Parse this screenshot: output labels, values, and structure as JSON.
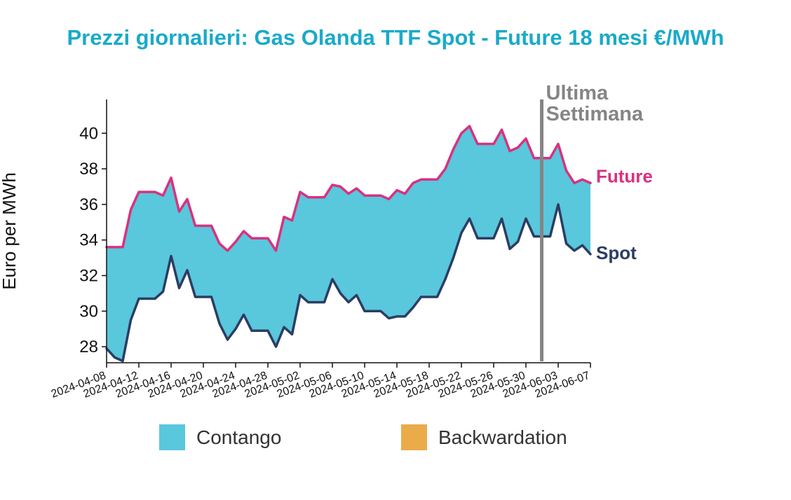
{
  "chart_data": {
    "type": "area",
    "title": "Prezzi giornalieri: Gas Olanda TTF Spot - Future 18 mesi €/MWh",
    "ylabel": "Euro per MWh",
    "xlabel": "",
    "ylim": [
      27.1,
      41.9
    ],
    "xlim": [
      "2024-04-08",
      "2024-06-07"
    ],
    "yticks": [
      28,
      30,
      32,
      34,
      36,
      38,
      40
    ],
    "xticks": [
      "2024-04-08",
      "2024-04-12",
      "2024-04-16",
      "2024-04-20",
      "2024-04-24",
      "2024-04-28",
      "2024-05-02",
      "2024-05-06",
      "2024-05-10",
      "2024-05-14",
      "2024-05-18",
      "2024-05-22",
      "2024-05-26",
      "2024-05-30",
      "2024-06-03",
      "2024-06-07"
    ],
    "series": [
      {
        "name": "Future",
        "color": "#d9317f",
        "x": [
          "2024-04-08",
          "2024-04-09",
          "2024-04-10",
          "2024-04-11",
          "2024-04-12",
          "2024-04-13",
          "2024-04-14",
          "2024-04-15",
          "2024-04-16",
          "2024-04-17",
          "2024-04-18",
          "2024-04-19",
          "2024-04-20",
          "2024-04-21",
          "2024-04-22",
          "2024-04-23",
          "2024-04-24",
          "2024-04-25",
          "2024-04-26",
          "2024-04-27",
          "2024-04-28",
          "2024-04-29",
          "2024-04-30",
          "2024-05-01",
          "2024-05-02",
          "2024-05-03",
          "2024-05-04",
          "2024-05-05",
          "2024-05-06",
          "2024-05-07",
          "2024-05-08",
          "2024-05-09",
          "2024-05-10",
          "2024-05-11",
          "2024-05-12",
          "2024-05-13",
          "2024-05-14",
          "2024-05-15",
          "2024-05-16",
          "2024-05-17",
          "2024-05-18",
          "2024-05-19",
          "2024-05-20",
          "2024-05-21",
          "2024-05-22",
          "2024-05-23",
          "2024-05-24",
          "2024-05-25",
          "2024-05-26",
          "2024-05-27",
          "2024-05-28",
          "2024-05-29",
          "2024-05-30",
          "2024-05-31",
          "2024-06-01",
          "2024-06-02",
          "2024-06-03",
          "2024-06-04",
          "2024-06-05",
          "2024-06-06",
          "2024-06-07"
        ],
        "values": [
          33.6,
          33.6,
          33.6,
          35.7,
          36.7,
          36.7,
          36.7,
          36.5,
          37.5,
          35.6,
          36.3,
          34.8,
          34.8,
          34.8,
          33.8,
          33.4,
          33.9,
          34.5,
          34.1,
          34.1,
          34.1,
          33.4,
          35.3,
          35.1,
          36.7,
          36.4,
          36.4,
          36.4,
          37.1,
          37.0,
          36.6,
          36.9,
          36.5,
          36.5,
          36.5,
          36.3,
          36.8,
          36.6,
          37.2,
          37.4,
          37.4,
          37.4,
          38.0,
          39.1,
          40.0,
          40.4,
          39.4,
          39.4,
          39.4,
          40.2,
          39.0,
          39.2,
          39.7,
          38.6,
          38.6,
          38.6,
          39.4,
          37.9,
          37.2,
          37.4,
          37.2
        ]
      },
      {
        "name": "Spot",
        "color": "#2b3d63",
        "x": [
          "2024-04-08",
          "2024-04-09",
          "2024-04-10",
          "2024-04-11",
          "2024-04-12",
          "2024-04-13",
          "2024-04-14",
          "2024-04-15",
          "2024-04-16",
          "2024-04-17",
          "2024-04-18",
          "2024-04-19",
          "2024-04-20",
          "2024-04-21",
          "2024-04-22",
          "2024-04-23",
          "2024-04-24",
          "2024-04-25",
          "2024-04-26",
          "2024-04-27",
          "2024-04-28",
          "2024-04-29",
          "2024-04-30",
          "2024-05-01",
          "2024-05-02",
          "2024-05-03",
          "2024-05-04",
          "2024-05-05",
          "2024-05-06",
          "2024-05-07",
          "2024-05-08",
          "2024-05-09",
          "2024-05-10",
          "2024-05-11",
          "2024-05-12",
          "2024-05-13",
          "2024-05-14",
          "2024-05-15",
          "2024-05-16",
          "2024-05-17",
          "2024-05-18",
          "2024-05-19",
          "2024-05-20",
          "2024-05-21",
          "2024-05-22",
          "2024-05-23",
          "2024-05-24",
          "2024-05-25",
          "2024-05-26",
          "2024-05-27",
          "2024-05-28",
          "2024-05-29",
          "2024-05-30",
          "2024-05-31",
          "2024-06-01",
          "2024-06-02",
          "2024-06-03",
          "2024-06-04",
          "2024-06-05",
          "2024-06-06",
          "2024-06-07"
        ],
        "values": [
          27.9,
          27.4,
          27.2,
          29.5,
          30.7,
          30.7,
          30.7,
          31.1,
          33.1,
          31.3,
          32.3,
          30.8,
          30.8,
          30.8,
          29.3,
          28.4,
          29.0,
          29.8,
          28.9,
          28.9,
          28.9,
          28.0,
          29.1,
          28.7,
          30.9,
          30.5,
          30.5,
          30.5,
          31.8,
          31.0,
          30.5,
          30.9,
          30.0,
          30.0,
          30.0,
          29.6,
          29.7,
          29.7,
          30.2,
          30.8,
          30.8,
          30.8,
          31.8,
          33.0,
          34.4,
          35.2,
          34.1,
          34.1,
          34.1,
          35.2,
          33.5,
          33.9,
          35.2,
          34.2,
          34.2,
          34.2,
          36.0,
          33.8,
          33.4,
          33.7,
          33.2
        ]
      }
    ],
    "fills": [
      {
        "name": "Contango",
        "color": "#59c7dc"
      },
      {
        "name": "Backwardation",
        "color": "#eaab4b"
      }
    ],
    "annotation": {
      "label_line1": "Ultima",
      "label_line2": "Settimana",
      "x": "2024-05-31",
      "color": "#858585"
    },
    "grid": false,
    "legend_position": "bottom"
  },
  "legend": {
    "contango_label": "Contango",
    "backwardation_label": "Backwardation"
  }
}
